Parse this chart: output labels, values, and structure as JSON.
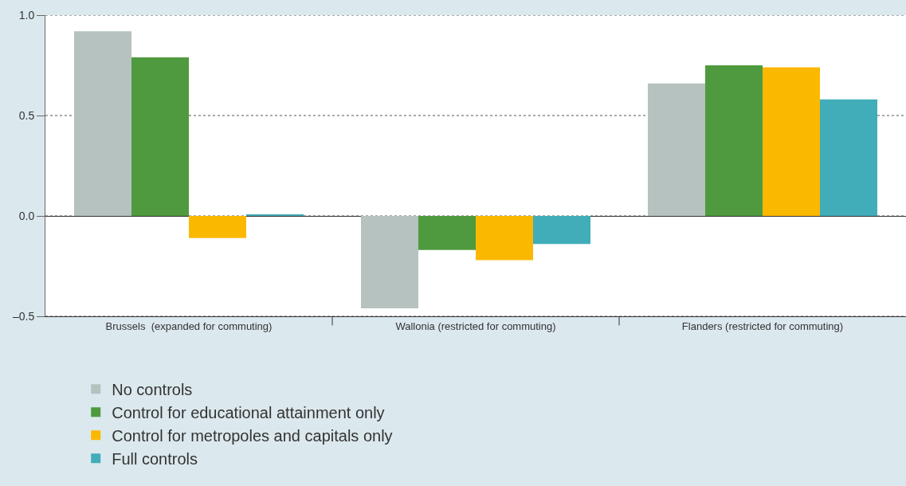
{
  "chart_data": {
    "type": "bar",
    "categories": [
      "Brussels  (expanded for commuting)",
      "Wallonia (restricted for commuting)",
      "Flanders (restricted for commuting)"
    ],
    "series": [
      {
        "name": "No controls",
        "color": "#b5c2c0",
        "values": [
          0.92,
          -0.46,
          0.66
        ]
      },
      {
        "name": "Control for educational attainment only",
        "color": "#4f9a3e",
        "values": [
          0.79,
          -0.17,
          0.75
        ]
      },
      {
        "name": "Control for metropoles and capitals only",
        "color": "#fbb800",
        "values": [
          -0.11,
          -0.22,
          0.74
        ]
      },
      {
        "name": "Full controls",
        "color": "#41adb9",
        "values": [
          0.005,
          -0.14,
          0.58
        ]
      }
    ],
    "ylim": [
      -0.5,
      1.0
    ],
    "yticks": [
      {
        "value": -0.5,
        "label": "–0.5"
      },
      {
        "value": 0,
        "label": "0.0"
      },
      {
        "value": 0.5,
        "label": "0.5"
      },
      {
        "value": 1.0,
        "label": "1.0"
      }
    ],
    "grid": "y",
    "line_style": "dotted",
    "legend": "bottom"
  }
}
